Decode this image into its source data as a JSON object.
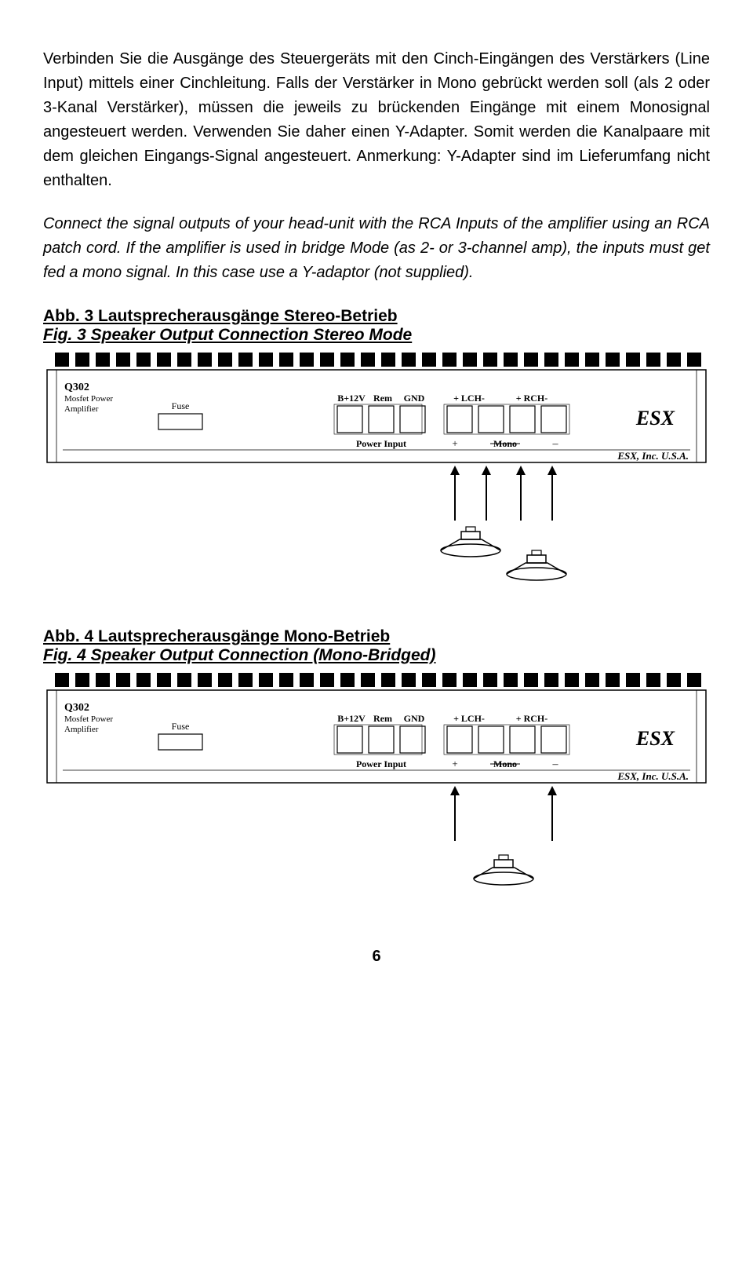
{
  "para1": "Verbinden Sie die Ausgänge des Steuergeräts mit den Cinch-Eingängen des Verstärkers (Line Input) mittels einer Cinchleitung. Falls der Verstärker in Mono gebrückt werden soll (als 2 oder 3-Kanal Verstärker), müssen die jeweils zu brückenden Eingänge mit einem Monosignal angesteuert werden. Verwenden Sie daher einen Y-Adapter. Somit werden die Kanalpaare mit dem gleichen Eingangs-Signal angesteuert. Anmerkung: Y-Adapter sind im Lieferumfang nicht enthalten.",
  "para2": "Connect the signal outputs of your head-unit with the RCA Inputs of the amplifier using an RCA patch cord. If the amplifier is used in bridge Mode (as 2- or 3-channel amp), the inputs must get fed a mono signal. In this case use a Y-adaptor (not supplied).",
  "abb3_de": "Abb. 3 Lautsprecherausgänge Stereo-Betrieb",
  "abb3_en": "Fig. 3 Speaker Output Connection Stereo Mode",
  "abb4_de": "Abb. 4 Lautsprecherausgänge Mono-Betrieb",
  "abb4_en": "Fig. 4 Speaker Output Connection (Mono-Bridged)",
  "page_num": "6",
  "amp": {
    "model": "Q302",
    "model_sub1": "Mosfet Power",
    "model_sub2": "Amplifier",
    "fuse": "Fuse",
    "b12v": "B+12V",
    "rem": "Rem",
    "gnd": "GND",
    "lch": "+ LCH-",
    "rch": "+ RCH-",
    "power_input": "Power Input",
    "plus": "+",
    "mono": "Mono",
    "minus": "–",
    "brand": "ESX, Inc. U.S.A.",
    "colors": {
      "stroke": "#000000",
      "fill": "#ffffff",
      "heatsink": "#000000"
    }
  }
}
